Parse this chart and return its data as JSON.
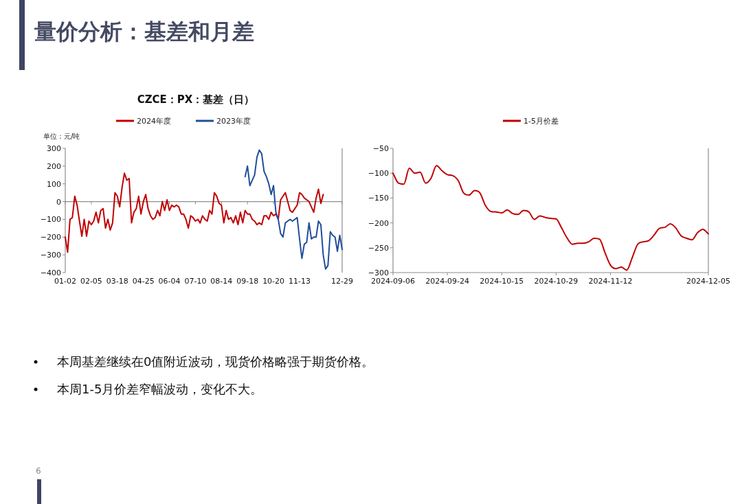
{
  "chart_data": [
    {
      "type": "line",
      "title": "CZCE：PX：基差（日）",
      "ylabel": "单位：元/吨",
      "legend": "top",
      "ylim": [
        -400,
        300
      ],
      "yticks": [
        -400,
        -300,
        -200,
        -100,
        0,
        100,
        200,
        300
      ],
      "categories": [
        "01-02",
        null,
        null,
        null,
        null,
        null,
        null,
        null,
        null,
        null,
        null,
        "02-05",
        null,
        null,
        null,
        null,
        null,
        null,
        null,
        null,
        null,
        null,
        "03-18",
        null,
        null,
        null,
        null,
        null,
        null,
        null,
        null,
        null,
        null,
        "04-25",
        null,
        null,
        null,
        null,
        null,
        null,
        null,
        null,
        null,
        null,
        "06-04",
        null,
        null,
        null,
        null,
        null,
        null,
        null,
        null,
        null,
        null,
        "07-10",
        null,
        null,
        null,
        null,
        null,
        null,
        null,
        null,
        null,
        null,
        "08-14",
        null,
        null,
        null,
        null,
        null,
        null,
        null,
        null,
        null,
        null,
        "09-18",
        null,
        null,
        null,
        null,
        null,
        null,
        null,
        null,
        null,
        null,
        "10-20",
        null,
        null,
        null,
        null,
        null,
        null,
        null,
        null,
        null,
        null,
        "11-13",
        null,
        null,
        null,
        null,
        null,
        null,
        null,
        null,
        null,
        null,
        null,
        null,
        null,
        null,
        null,
        null,
        null,
        "12-29"
      ],
      "annotations": [
        "量价分析：基差和月差",
        "本周基差继续在0值附近波动，现货价格略强于期货价格。",
        "本周1-5月价差窄幅波动，变化不大。",
        "6"
      ],
      "series": [
        {
          "name": "2024年度",
          "color": "#c00000",
          "values": [
            -200,
            -285,
            -100,
            -90,
            30,
            -20,
            -110,
            -195,
            -100,
            -195,
            -110,
            -130,
            -110,
            -60,
            -120,
            -50,
            -40,
            -150,
            -100,
            -160,
            -120,
            50,
            30,
            -30,
            80,
            160,
            120,
            130,
            -120,
            -60,
            -40,
            30,
            -70,
            0,
            40,
            -40,
            -80,
            -100,
            -90,
            -50,
            -80,
            0,
            -50,
            10,
            -50,
            -20,
            -30,
            -20,
            -30,
            -70,
            -70,
            -100,
            -150,
            -80,
            -90,
            -110,
            -100,
            -120,
            -80,
            -100,
            -110,
            -50,
            -70,
            50,
            30,
            -10,
            -20,
            -120,
            -50,
            -100,
            -90,
            -120,
            -80,
            -130,
            -60,
            -120,
            -50,
            -70,
            -70,
            -100,
            -110,
            -130,
            -120,
            -130,
            -80,
            -80,
            -100,
            -60,
            -80,
            -70,
            -100,
            10,
            30,
            50,
            0,
            -50,
            -60,
            -40,
            -20,
            50,
            40,
            20,
            10,
            0,
            -30,
            -60,
            20,
            70,
            -10,
            40,
            null,
            null,
            null,
            null,
            null,
            null,
            null,
            null
          ]
        },
        {
          "name": "2023年度",
          "color": "#1f4e9c",
          "values": [
            null,
            null,
            null,
            null,
            null,
            null,
            null,
            null,
            null,
            null,
            null,
            null,
            null,
            null,
            null,
            null,
            null,
            null,
            null,
            null,
            null,
            null,
            null,
            null,
            null,
            null,
            null,
            null,
            null,
            null,
            null,
            null,
            null,
            null,
            null,
            null,
            null,
            null,
            null,
            null,
            null,
            null,
            null,
            null,
            null,
            null,
            null,
            null,
            null,
            null,
            null,
            null,
            null,
            null,
            null,
            null,
            null,
            null,
            null,
            null,
            null,
            null,
            null,
            null,
            null,
            null,
            null,
            null,
            null,
            null,
            null,
            null,
            null,
            null,
            null,
            null,
            140,
            200,
            90,
            120,
            150,
            250,
            290,
            270,
            170,
            140,
            100,
            40,
            90,
            -60,
            -100,
            -180,
            -200,
            -120,
            -110,
            -100,
            -110,
            -100,
            -90,
            -210,
            -320,
            -240,
            -230,
            -120,
            -210,
            -200,
            -200,
            -110,
            -130,
            -300,
            -380,
            -360,
            -170,
            -190,
            -200,
            -280,
            -190,
            -270
          ]
        }
      ]
    },
    {
      "type": "line",
      "legend": "top",
      "ylim": [
        -300,
        -50
      ],
      "yticks": [
        -300,
        -250,
        -200,
        -150,
        -100,
        -50
      ],
      "categories": [
        "2024-09-06",
        null,
        null,
        null,
        null,
        null,
        null,
        null,
        null,
        null,
        "2024-09-24",
        null,
        null,
        null,
        null,
        null,
        null,
        null,
        null,
        null,
        "2024-10-15",
        null,
        null,
        null,
        null,
        null,
        null,
        null,
        null,
        null,
        "2024-10-29",
        null,
        null,
        null,
        null,
        null,
        null,
        null,
        null,
        null,
        "2024-11-12",
        null,
        null,
        null,
        null,
        null,
        null,
        null,
        null,
        null,
        null,
        null,
        null,
        null,
        null,
        null,
        null,
        null,
        "2024-12-05"
      ],
      "series": [
        {
          "name": "1-5月价差",
          "color": "#c00000",
          "values": [
            -100,
            -120,
            -122,
            -90,
            -100,
            -98,
            -120,
            -110,
            -85,
            -95,
            -103,
            -105,
            -115,
            -140,
            -144,
            -135,
            -140,
            -165,
            -177,
            -178,
            -180,
            -174,
            -181,
            -183,
            -175,
            -178,
            -193,
            -186,
            -189,
            -191,
            -192,
            -210,
            -230,
            -243,
            -241,
            -241,
            -238,
            -231,
            -233,
            -260,
            -285,
            -292,
            -289,
            -295,
            -270,
            -243,
            -238,
            -236,
            -225,
            -211,
            -209,
            -202,
            -210,
            -226,
            -231,
            -234,
            -220,
            -213,
            -222
          ]
        }
      ]
    }
  ]
}
